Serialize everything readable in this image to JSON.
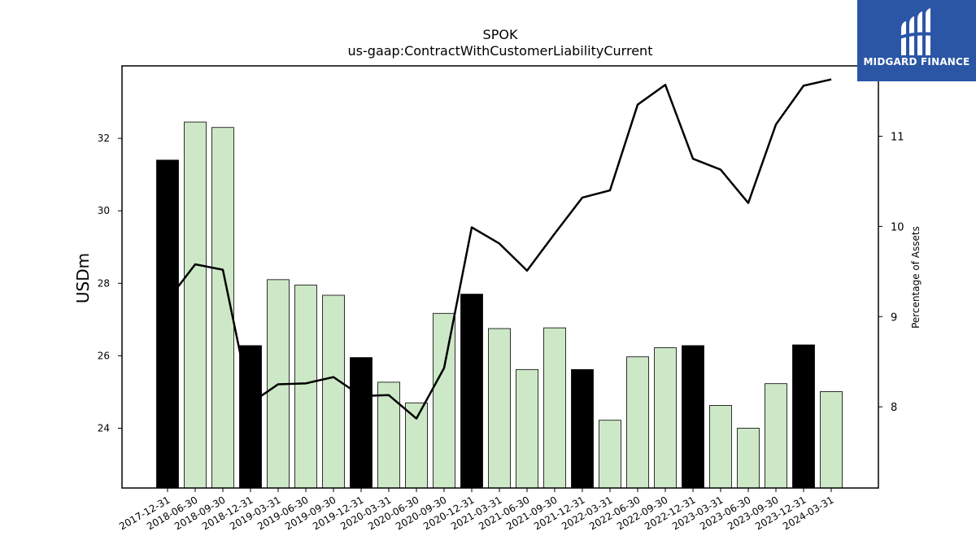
{
  "brand": {
    "name": "MIDGARD FINANCE",
    "background": "#2b56a6"
  },
  "chart_data": {
    "type": "bar",
    "title": "SPOK",
    "subtitle": "us-gaap:ContractWithCustomerLiabilityCurrent",
    "ylabel": "USDm",
    "ylabel_right": "Percentage of Assets",
    "ylim": [
      22.35,
      34.0
    ],
    "ylim_right": [
      7.1,
      11.78
    ],
    "yticks": [
      24,
      26,
      28,
      30,
      32
    ],
    "yticks_right": [
      8,
      9,
      10,
      11
    ],
    "categories": [
      "2017-12-31",
      "2018-06-30",
      "2018-09-30",
      "2018-12-31",
      "2019-03-31",
      "2019-06-30",
      "2019-09-30",
      "2019-12-31",
      "2020-03-31",
      "2020-06-30",
      "2020-09-30",
      "2020-12-31",
      "2021-03-31",
      "2021-06-30",
      "2021-09-30",
      "2021-12-31",
      "2022-03-31",
      "2022-06-30",
      "2022-09-30",
      "2022-12-31",
      "2023-03-31",
      "2023-06-30",
      "2023-09-30",
      "2023-12-31",
      "2024-03-31"
    ],
    "series": [
      {
        "axis": "left",
        "kind": "bar",
        "values": [
          31.4,
          32.45,
          32.3,
          26.28,
          28.1,
          27.95,
          27.67,
          25.95,
          25.27,
          24.7,
          27.17,
          27.7,
          26.75,
          25.62,
          26.77,
          25.62,
          24.22,
          25.97,
          26.22,
          26.28,
          24.63,
          24.0,
          25.23,
          26.3,
          25.01
        ],
        "annual_flags": [
          true,
          false,
          false,
          true,
          false,
          false,
          false,
          true,
          false,
          false,
          false,
          true,
          false,
          false,
          false,
          true,
          false,
          false,
          false,
          true,
          false,
          false,
          false,
          true,
          false
        ],
        "colors": {
          "annual": "#000000",
          "quarterly": "#cde8c6"
        }
      },
      {
        "axis": "right",
        "kind": "line",
        "color": "#000000",
        "values": [
          9.18,
          9.58,
          9.52,
          8.04,
          8.25,
          8.26,
          8.33,
          8.12,
          8.13,
          7.87,
          8.43,
          9.99,
          9.81,
          9.51,
          9.92,
          10.32,
          10.4,
          11.35,
          11.57,
          10.75,
          10.63,
          10.26,
          11.13,
          11.56,
          11.63
        ]
      }
    ],
    "grid": false,
    "legend": "none"
  }
}
